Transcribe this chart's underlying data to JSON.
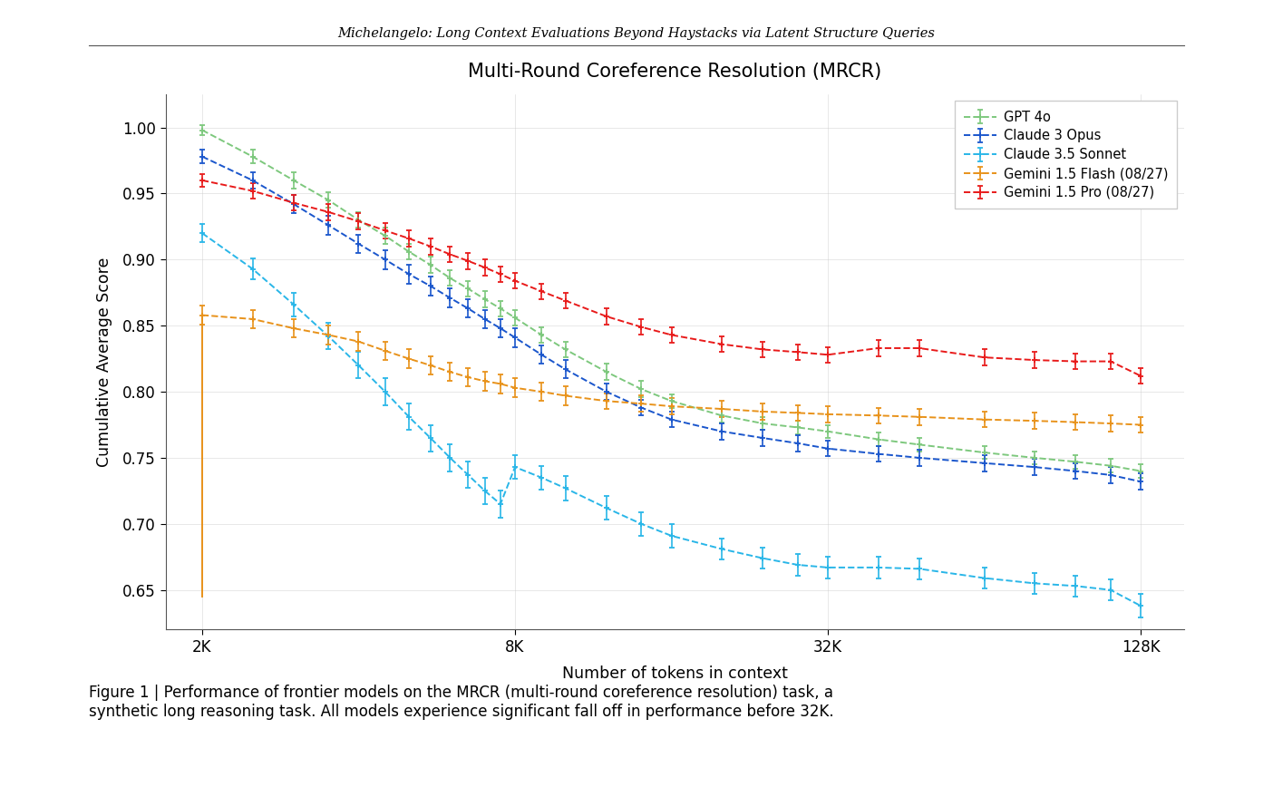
{
  "title": "Multi-Round Coreference Resolution (MRCR)",
  "header": "Michelangelo: Long Context Evaluations Beyond Haystacks via Latent Structure Queries",
  "xlabel": "Number of tokens in context",
  "ylabel": "Cumulative Average Score",
  "caption": "Figure 1 | Performance of frontier models on the MRCR (multi-round coreference resolution) task, a\nsynthetic long reasoning task. All models experience significant fall off in performance before 32K.",
  "x_ticks_labels": [
    "2K",
    "8K",
    "32K",
    "128K"
  ],
  "x_ticks_values": [
    2000,
    8000,
    32000,
    128000
  ],
  "ylim": [
    0.62,
    1.025
  ],
  "yticks": [
    0.65,
    0.7,
    0.75,
    0.8,
    0.85,
    0.9,
    0.95,
    1.0
  ],
  "series": [
    {
      "name": "GPT 4o",
      "color": "#7dc87d",
      "linestyle": "--",
      "marker": "+",
      "x": [
        2000,
        2500,
        3000,
        3500,
        4000,
        4500,
        5000,
        5500,
        6000,
        6500,
        7000,
        7500,
        8000,
        9000,
        10000,
        12000,
        14000,
        16000,
        20000,
        24000,
        28000,
        32000,
        40000,
        48000,
        64000,
        80000,
        96000,
        112000,
        128000
      ],
      "y": [
        0.998,
        0.978,
        0.96,
        0.945,
        0.93,
        0.918,
        0.906,
        0.896,
        0.886,
        0.878,
        0.87,
        0.863,
        0.856,
        0.843,
        0.832,
        0.815,
        0.802,
        0.793,
        0.782,
        0.776,
        0.773,
        0.77,
        0.764,
        0.76,
        0.754,
        0.75,
        0.747,
        0.744,
        0.74
      ],
      "yerr": [
        0.004,
        0.005,
        0.006,
        0.006,
        0.006,
        0.006,
        0.006,
        0.006,
        0.006,
        0.006,
        0.006,
        0.006,
        0.006,
        0.006,
        0.006,
        0.006,
        0.006,
        0.005,
        0.005,
        0.005,
        0.005,
        0.005,
        0.005,
        0.005,
        0.005,
        0.005,
        0.005,
        0.005,
        0.005
      ]
    },
    {
      "name": "Claude 3 Opus",
      "color": "#1a56cc",
      "linestyle": "--",
      "marker": "+",
      "x": [
        2000,
        2500,
        3000,
        3500,
        4000,
        4500,
        5000,
        5500,
        6000,
        6500,
        7000,
        7500,
        8000,
        9000,
        10000,
        12000,
        14000,
        16000,
        20000,
        24000,
        28000,
        32000,
        40000,
        48000,
        64000,
        80000,
        96000,
        112000,
        128000
      ],
      "y": [
        0.978,
        0.96,
        0.942,
        0.926,
        0.912,
        0.9,
        0.889,
        0.88,
        0.871,
        0.863,
        0.855,
        0.848,
        0.841,
        0.828,
        0.817,
        0.8,
        0.788,
        0.779,
        0.77,
        0.765,
        0.761,
        0.757,
        0.753,
        0.75,
        0.746,
        0.743,
        0.74,
        0.737,
        0.732
      ],
      "yerr": [
        0.005,
        0.006,
        0.007,
        0.007,
        0.007,
        0.007,
        0.007,
        0.007,
        0.007,
        0.007,
        0.007,
        0.007,
        0.007,
        0.007,
        0.007,
        0.006,
        0.006,
        0.006,
        0.006,
        0.006,
        0.006,
        0.006,
        0.006,
        0.006,
        0.006,
        0.006,
        0.006,
        0.006,
        0.006
      ]
    },
    {
      "name": "Claude 3.5 Sonnet",
      "color": "#29b6e8",
      "linestyle": "--",
      "marker": "+",
      "x": [
        2000,
        2500,
        3000,
        3500,
        4000,
        4500,
        5000,
        5500,
        6000,
        6500,
        7000,
        7500,
        8000,
        9000,
        10000,
        12000,
        14000,
        16000,
        20000,
        24000,
        28000,
        32000,
        40000,
        48000,
        64000,
        80000,
        96000,
        112000,
        128000
      ],
      "y": [
        0.92,
        0.893,
        0.866,
        0.842,
        0.82,
        0.8,
        0.781,
        0.765,
        0.75,
        0.737,
        0.725,
        0.715,
        0.743,
        0.735,
        0.727,
        0.712,
        0.7,
        0.691,
        0.681,
        0.674,
        0.669,
        0.667,
        0.667,
        0.666,
        0.659,
        0.655,
        0.653,
        0.65,
        0.638
      ],
      "yerr": [
        0.007,
        0.008,
        0.009,
        0.01,
        0.01,
        0.01,
        0.01,
        0.01,
        0.01,
        0.01,
        0.01,
        0.01,
        0.009,
        0.009,
        0.009,
        0.009,
        0.009,
        0.009,
        0.008,
        0.008,
        0.008,
        0.008,
        0.008,
        0.008,
        0.008,
        0.008,
        0.008,
        0.008,
        0.009
      ]
    },
    {
      "name": "Gemini 1.5 Flash (08/27)",
      "color": "#e8921a",
      "linestyle": "--",
      "marker": "+",
      "x": [
        2000,
        2500,
        3000,
        3500,
        4000,
        4500,
        5000,
        5500,
        6000,
        6500,
        7000,
        7500,
        8000,
        9000,
        10000,
        12000,
        14000,
        16000,
        20000,
        24000,
        28000,
        32000,
        40000,
        48000,
        64000,
        80000,
        96000,
        112000,
        128000
      ],
      "y": [
        0.858,
        0.855,
        0.848,
        0.843,
        0.838,
        0.831,
        0.825,
        0.82,
        0.815,
        0.811,
        0.808,
        0.806,
        0.803,
        0.8,
        0.797,
        0.793,
        0.791,
        0.789,
        0.787,
        0.785,
        0.784,
        0.783,
        0.782,
        0.781,
        0.779,
        0.778,
        0.777,
        0.776,
        0.775
      ],
      "yerr": [
        0.007,
        0.007,
        0.007,
        0.007,
        0.007,
        0.007,
        0.007,
        0.007,
        0.007,
        0.007,
        0.007,
        0.007,
        0.007,
        0.007,
        0.007,
        0.006,
        0.006,
        0.006,
        0.006,
        0.006,
        0.006,
        0.006,
        0.006,
        0.006,
        0.006,
        0.006,
        0.006,
        0.006,
        0.006
      ],
      "vline_x": 2000,
      "vline_y_bottom": 0.645,
      "vline_y_top": 0.858
    },
    {
      "name": "Gemini 1.5 Pro (08/27)",
      "color": "#e81a1a",
      "linestyle": "--",
      "marker": "+",
      "x": [
        2000,
        2500,
        3000,
        3500,
        4000,
        4500,
        5000,
        5500,
        6000,
        6500,
        7000,
        7500,
        8000,
        9000,
        10000,
        12000,
        14000,
        16000,
        20000,
        24000,
        28000,
        32000,
        40000,
        48000,
        64000,
        80000,
        96000,
        112000,
        128000
      ],
      "y": [
        0.96,
        0.952,
        0.943,
        0.936,
        0.929,
        0.922,
        0.916,
        0.91,
        0.904,
        0.899,
        0.894,
        0.889,
        0.884,
        0.876,
        0.869,
        0.857,
        0.849,
        0.843,
        0.836,
        0.832,
        0.83,
        0.828,
        0.833,
        0.833,
        0.826,
        0.824,
        0.823,
        0.823,
        0.812
      ],
      "yerr": [
        0.005,
        0.006,
        0.006,
        0.006,
        0.006,
        0.006,
        0.006,
        0.006,
        0.006,
        0.006,
        0.006,
        0.006,
        0.006,
        0.006,
        0.006,
        0.006,
        0.006,
        0.006,
        0.006,
        0.006,
        0.006,
        0.006,
        0.006,
        0.006,
        0.006,
        0.006,
        0.006,
        0.006,
        0.006
      ]
    }
  ]
}
